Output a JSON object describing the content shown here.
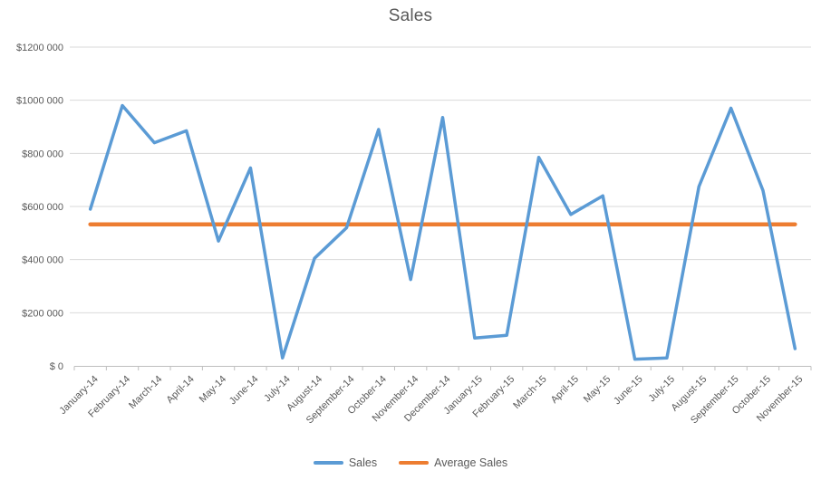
{
  "chart_data": {
    "type": "line",
    "title": "Sales",
    "categories": [
      "January-14",
      "February-14",
      "March-14",
      "April-14",
      "May-14",
      "June-14",
      "July-14",
      "August-14",
      "September-14",
      "October-14",
      "November-14",
      "December-14",
      "January-15",
      "February-15",
      "March-15",
      "April-15",
      "May-15",
      "June-15",
      "July-15",
      "August-15",
      "September-15",
      "October-15",
      "November-15"
    ],
    "series": [
      {
        "name": "Sales",
        "color": "#5B9BD5",
        "values": [
          590000,
          980000,
          840000,
          885000,
          470000,
          745000,
          30000,
          405000,
          520000,
          890000,
          325000,
          935000,
          105000,
          115000,
          785000,
          570000,
          640000,
          25000,
          30000,
          675000,
          970000,
          660000,
          65000
        ]
      },
      {
        "name": "Average Sales",
        "color": "#ED7D31",
        "style": "flat-average-line",
        "value": 532826
      }
    ],
    "y_ticks": [
      {
        "value": 1200000,
        "label": "$1200 000"
      },
      {
        "value": 1000000,
        "label": "$1000 000"
      },
      {
        "value": 800000,
        "label": "$800 000"
      },
      {
        "value": 600000,
        "label": "$600 000"
      },
      {
        "value": 400000,
        "label": "$400 000"
      },
      {
        "value": 200000,
        "label": "$200 000"
      },
      {
        "value": 0,
        "label": "$ 0"
      }
    ],
    "ylim": [
      0,
      1200000
    ],
    "grid": true,
    "legend_position": "bottom",
    "colors": {
      "gridline": "#D9D9D9",
      "axis_line": "#BFBFBF",
      "label_text": "#595959",
      "title_text": "#595959"
    }
  }
}
